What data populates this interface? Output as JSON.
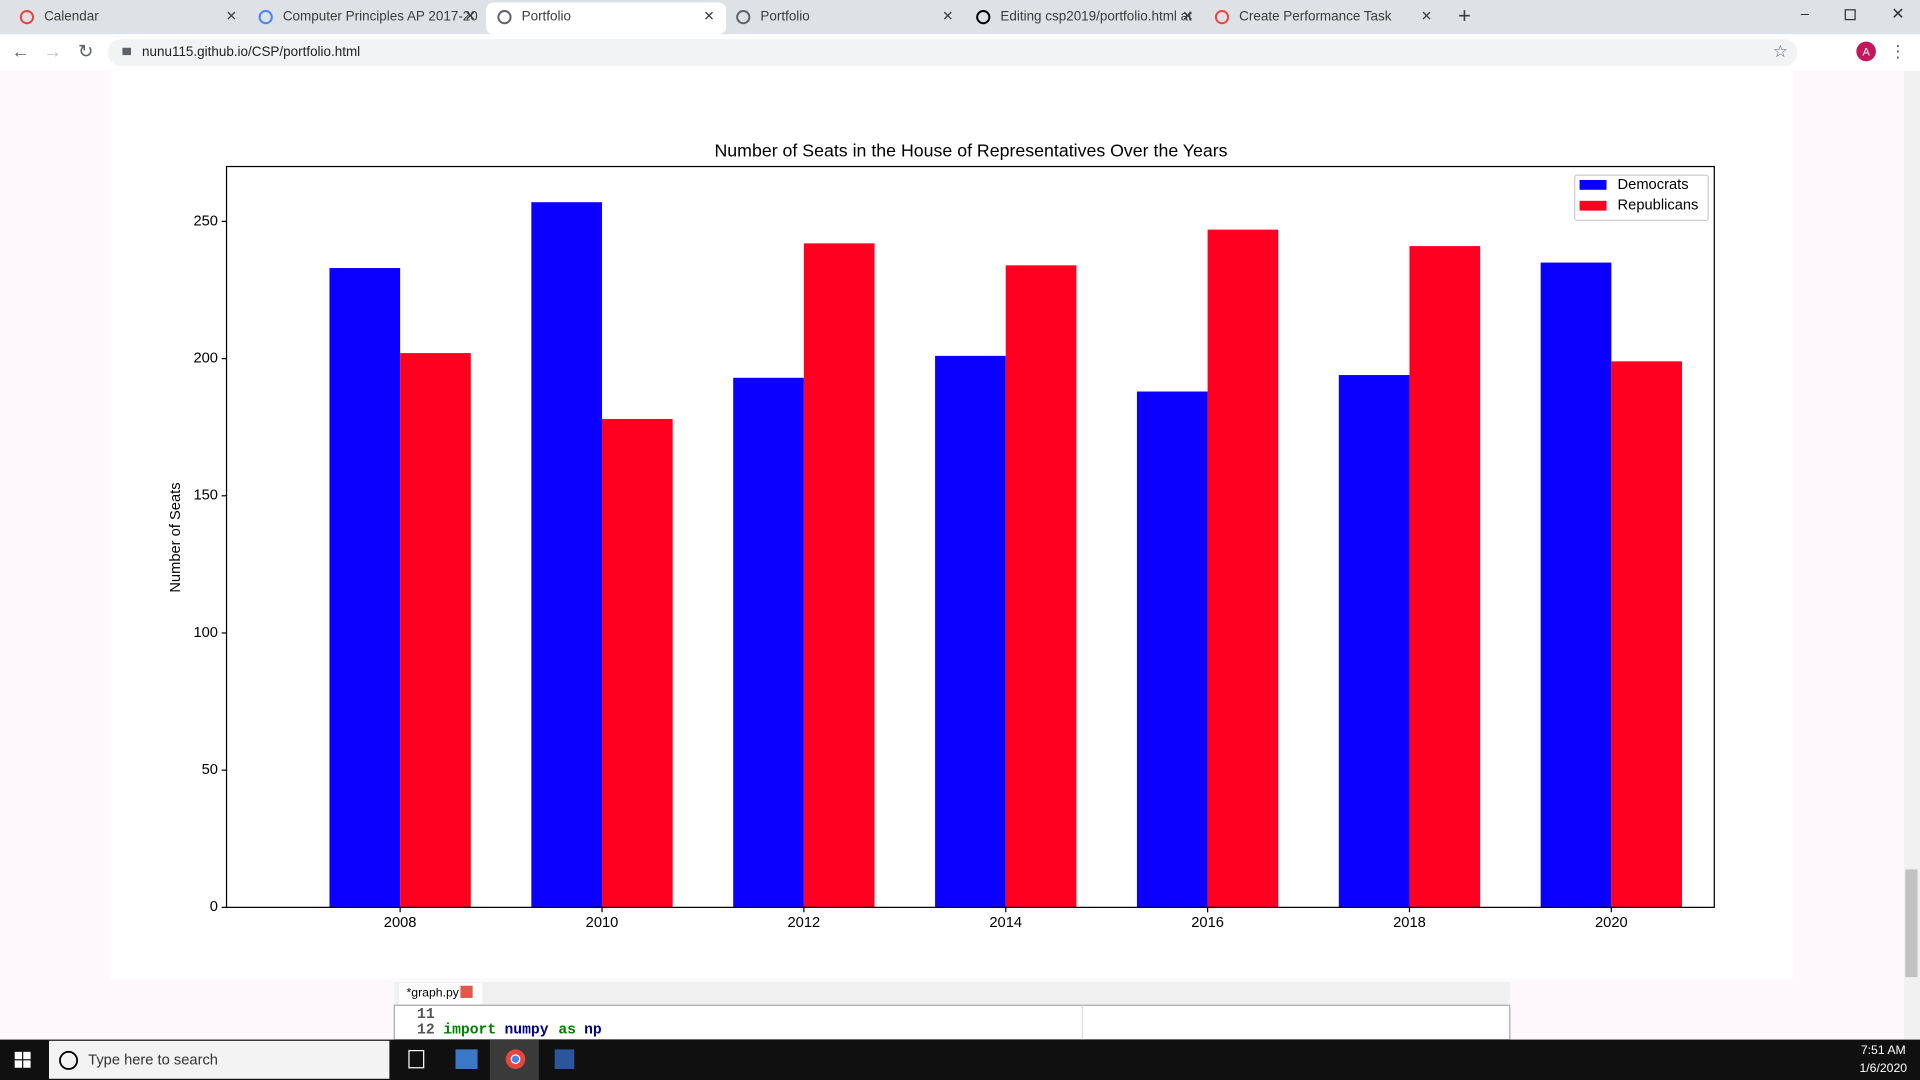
{
  "browser": {
    "tabs": [
      "Calendar",
      "Computer Principles AP 2017-20",
      "Portfolio",
      "Portfolio",
      "Editing csp2019/portfolio.html at",
      "Create Performance Task"
    ],
    "url": "nunu115.github.io/CSP/portfolio.html",
    "avatar": "A"
  },
  "chart_data": {
    "type": "bar",
    "title": "Number of Seats in the House of Representatives Over the Years",
    "y_label": "Number of Seats",
    "categories": [
      "2008",
      "2010",
      "2012",
      "2014",
      "2016",
      "2018",
      "2020"
    ],
    "series": [
      {
        "name": "Democrats",
        "color": "#0b00ff",
        "values": [
          233,
          257,
          193,
          201,
          188,
          194,
          235
        ]
      },
      {
        "name": "Republicans",
        "color": "#ff0020",
        "values": [
          202,
          178,
          242,
          234,
          247,
          241,
          199
        ]
      }
    ],
    "ylim": [
      0,
      270
    ],
    "yticks": [
      0,
      50,
      100,
      150,
      200,
      250
    ],
    "legend": "upper right",
    "grid": false
  },
  "editor": {
    "tab": "*graph.py",
    "lines": [
      {
        "number": "11"
      },
      {
        "number": "12",
        "tokens": [
          "import",
          "numpy",
          "as",
          "np"
        ]
      }
    ]
  },
  "taskbar": {
    "search": "Type here to search",
    "time": "7:51 AM",
    "date": "1/6/2020"
  }
}
